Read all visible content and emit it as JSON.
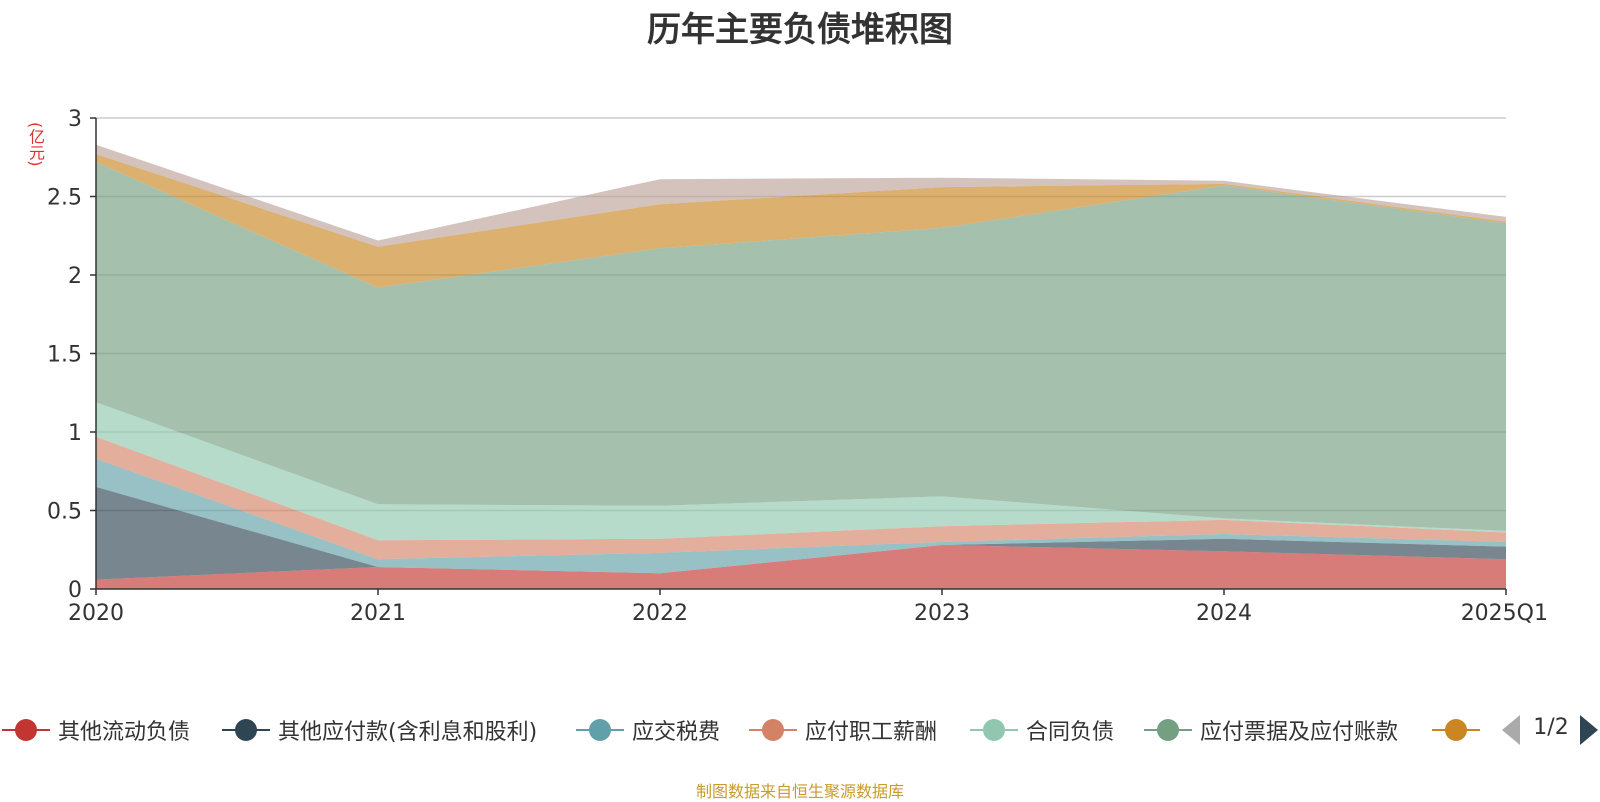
{
  "title": "历年主要负债堆积图",
  "unit_label": "(亿元)",
  "source": "制图数据来自恒生聚源数据库",
  "legend_page": "1/2",
  "chart_data": {
    "type": "area",
    "stacked": true,
    "title": "历年主要负债堆积图",
    "ylabel": "(亿元)",
    "categories": [
      "2020",
      "2021",
      "2022",
      "2023",
      "2024",
      "2025Q1"
    ],
    "ylim": [
      0,
      3
    ],
    "yticks": [
      0,
      0.5,
      1,
      1.5,
      2,
      2.5,
      3
    ],
    "ytick_labels": [
      "0",
      "0.5",
      "1",
      "1.5",
      "2",
      "2.5",
      "3"
    ],
    "grid": true,
    "legend_position": "bottom",
    "series": [
      {
        "name": "其他流动负债",
        "color": "#c23531",
        "values": [
          0.06,
          0.14,
          0.1,
          0.28,
          0.24,
          0.19
        ],
        "in_legend": true
      },
      {
        "name": "其他应付款(含利息和股利)",
        "color": "#2f4554",
        "values": [
          0.59,
          0.0,
          0.0,
          0.0,
          0.08,
          0.08
        ],
        "in_legend": true
      },
      {
        "name": "应交税费",
        "color": "#61a0a8",
        "values": [
          0.18,
          0.05,
          0.13,
          0.02,
          0.03,
          0.03
        ],
        "in_legend": true
      },
      {
        "name": "应付职工薪酬",
        "color": "#d48265",
        "values": [
          0.14,
          0.12,
          0.09,
          0.1,
          0.09,
          0.06
        ],
        "in_legend": true
      },
      {
        "name": "合同负债",
        "color": "#91c7ae",
        "values": [
          0.22,
          0.23,
          0.21,
          0.19,
          0.01,
          0.01
        ],
        "in_legend": true
      },
      {
        "name": "应付票据及应付账款",
        "color": "#749f83",
        "values": [
          1.53,
          1.38,
          1.64,
          1.71,
          2.12,
          1.96
        ],
        "in_legend": true
      },
      {
        "name": "",
        "color": "#ca8622",
        "values": [
          0.05,
          0.26,
          0.28,
          0.26,
          0.01,
          0.01
        ],
        "in_legend": false
      },
      {
        "name": "",
        "color": "#bda29a",
        "values": [
          0.06,
          0.04,
          0.16,
          0.06,
          0.02,
          0.03
        ],
        "in_legend": false
      }
    ]
  }
}
